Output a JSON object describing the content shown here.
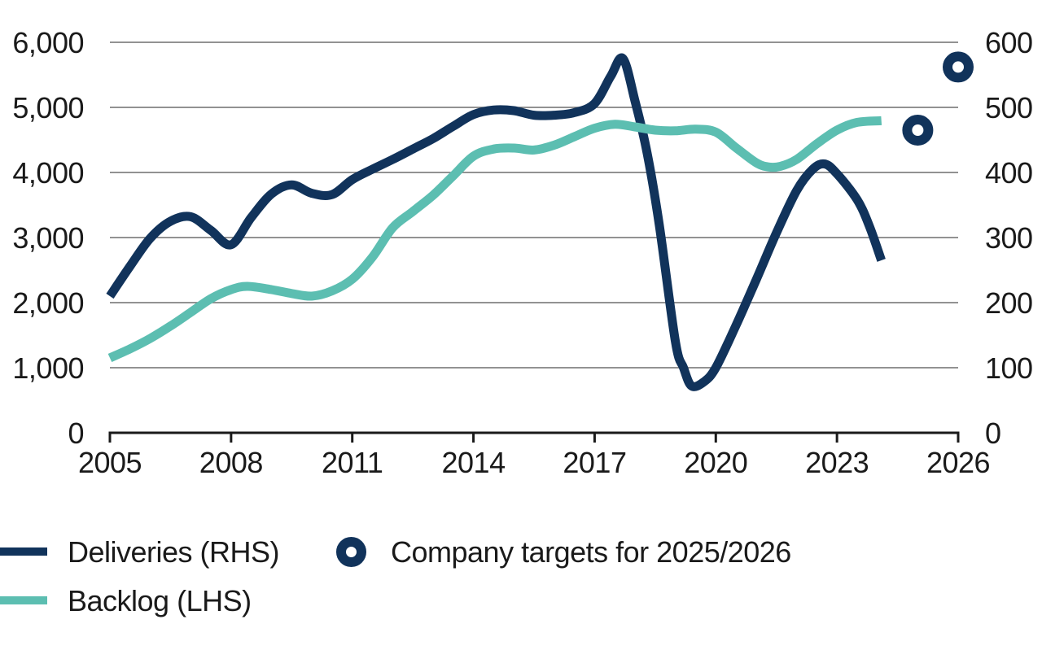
{
  "colors": {
    "navy": "#11335B",
    "teal": "#5CBEB1",
    "grid": "#6e6e6e",
    "axis": "#1a1a1a",
    "text": "#1a1a1a",
    "background": "#ffffff"
  },
  "legend": {
    "deliveries_label": "Deliveries (RHS)",
    "backlog_label": "Backlog (LHS)",
    "targets_label": "Company targets for 2025/2026"
  },
  "chart_data": {
    "type": "line",
    "title": "",
    "grid": true,
    "x_axis": {
      "min": 2005,
      "max": 2026,
      "tick_years": [
        2005,
        2008,
        2011,
        2014,
        2017,
        2020,
        2023,
        2026
      ],
      "tick_labels": [
        "2005",
        "2008",
        "2011",
        "2014",
        "2017",
        "2020",
        "2023",
        "2026"
      ]
    },
    "left_axis": {
      "min": 0,
      "max": 6000,
      "tick_values": [
        0,
        1000,
        2000,
        3000,
        4000,
        5000,
        6000
      ],
      "tick_labels": [
        "0",
        "1,000",
        "2,000",
        "3,000",
        "4,000",
        "5,000",
        "6,000"
      ]
    },
    "right_axis": {
      "min": 0,
      "max": 600,
      "tick_values": [
        0,
        100,
        200,
        300,
        400,
        500,
        600
      ],
      "tick_labels": [
        "0",
        "100",
        "200",
        "300",
        "400",
        "500",
        "600"
      ]
    },
    "series": [
      {
        "name": "Deliveries (RHS)",
        "axis": "right",
        "color": "#11335B",
        "points": [
          [
            2005,
            210
          ],
          [
            2005.5,
            256
          ],
          [
            2006,
            299
          ],
          [
            2006.5,
            325
          ],
          [
            2007,
            332
          ],
          [
            2007.5,
            311
          ],
          [
            2008,
            289
          ],
          [
            2008.5,
            331
          ],
          [
            2009,
            367
          ],
          [
            2009.5,
            381
          ],
          [
            2010,
            368
          ],
          [
            2010.5,
            366
          ],
          [
            2011,
            389
          ],
          [
            2011.5,
            405
          ],
          [
            2012,
            420
          ],
          [
            2012.5,
            436
          ],
          [
            2013,
            452
          ],
          [
            2013.5,
            471
          ],
          [
            2014,
            489
          ],
          [
            2014.5,
            496
          ],
          [
            2015,
            495
          ],
          [
            2015.5,
            488
          ],
          [
            2016,
            488
          ],
          [
            2016.5,
            492
          ],
          [
            2017,
            506
          ],
          [
            2017.4,
            548
          ],
          [
            2017.7,
            575
          ],
          [
            2018,
            510
          ],
          [
            2018.3,
            430
          ],
          [
            2018.6,
            320
          ],
          [
            2019,
            140
          ],
          [
            2019.2,
            100
          ],
          [
            2019.4,
            72
          ],
          [
            2019.7,
            78
          ],
          [
            2020,
            100
          ],
          [
            2020.5,
            165
          ],
          [
            2021,
            235
          ],
          [
            2021.5,
            307
          ],
          [
            2022,
            372
          ],
          [
            2022.4,
            405
          ],
          [
            2022.7,
            413
          ],
          [
            2023,
            398
          ],
          [
            2023.5,
            358
          ],
          [
            2023.8,
            318
          ],
          [
            2024.1,
            265
          ]
        ]
      },
      {
        "name": "Backlog (LHS)",
        "axis": "left",
        "color": "#5CBEB1",
        "points": [
          [
            2005,
            1150
          ],
          [
            2005.5,
            1290
          ],
          [
            2006,
            1450
          ],
          [
            2006.5,
            1640
          ],
          [
            2007,
            1850
          ],
          [
            2007.5,
            2060
          ],
          [
            2008,
            2200
          ],
          [
            2008.4,
            2250
          ],
          [
            2009,
            2200
          ],
          [
            2009.5,
            2140
          ],
          [
            2010,
            2100
          ],
          [
            2010.5,
            2180
          ],
          [
            2011,
            2360
          ],
          [
            2011.5,
            2700
          ],
          [
            2012,
            3150
          ],
          [
            2012.5,
            3400
          ],
          [
            2013,
            3650
          ],
          [
            2013.5,
            3950
          ],
          [
            2014,
            4250
          ],
          [
            2014.5,
            4360
          ],
          [
            2015,
            4375
          ],
          [
            2015.5,
            4345
          ],
          [
            2016,
            4420
          ],
          [
            2016.5,
            4550
          ],
          [
            2017,
            4680
          ],
          [
            2017.5,
            4740
          ],
          [
            2018,
            4700
          ],
          [
            2018.5,
            4650
          ],
          [
            2019,
            4640
          ],
          [
            2019.5,
            4665
          ],
          [
            2020,
            4620
          ],
          [
            2020.5,
            4380
          ],
          [
            2021,
            4150
          ],
          [
            2021.3,
            4085
          ],
          [
            2021.6,
            4095
          ],
          [
            2022,
            4200
          ],
          [
            2022.5,
            4440
          ],
          [
            2023,
            4650
          ],
          [
            2023.5,
            4770
          ],
          [
            2024.1,
            4795
          ]
        ]
      }
    ],
    "targets": {
      "name": "Company targets for 2025/2026",
      "axis": "right",
      "color": "#11335B",
      "points": [
        [
          2025,
          465
        ],
        [
          2026,
          562
        ]
      ]
    }
  }
}
